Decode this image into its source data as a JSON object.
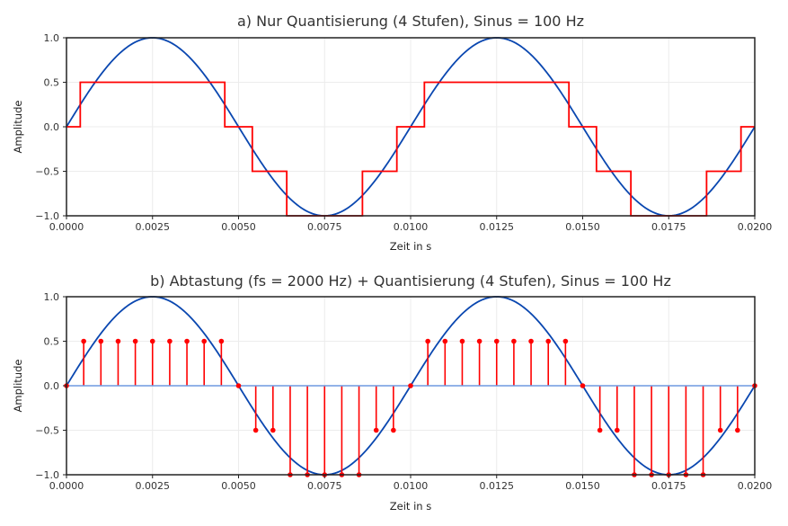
{
  "colors": {
    "sine": "#0a47b0",
    "quant": "#ff0000",
    "baseline": "#6e9ae0",
    "grid": "#ececec",
    "frame": "#222222"
  },
  "chart_data": [
    {
      "type": "line",
      "title": "a) Nur Quantisierung (4 Stufen), Sinus = 100 Hz",
      "xlabel": "Zeit in s",
      "ylabel": "Amplitude",
      "xlim": [
        0,
        0.02
      ],
      "ylim": [
        -1,
        1
      ],
      "grid": true,
      "x_ticks": [
        0,
        0.0025,
        0.005,
        0.0075,
        0.01,
        0.0125,
        0.015,
        0.0175,
        0.02
      ],
      "x_tick_labels": [
        "0.0000",
        "0.0025",
        "0.0050",
        "0.0075",
        "0.0100",
        "0.0125",
        "0.0150",
        "0.0175",
        "0.0200"
      ],
      "y_ticks": [
        -1,
        -0.5,
        0,
        0.5,
        1
      ],
      "y_tick_labels": [
        "−1.0",
        "−0.5",
        "0.0",
        "0.5",
        "1.0"
      ],
      "series": [
        {
          "kind": "sine",
          "frequency_hz": 100,
          "amplitude": 1
        },
        {
          "kind": "step",
          "x": [
            0,
            0.0004,
            0.0046,
            0.0054,
            0.0064,
            0.0086,
            0.0096,
            0.0104,
            0.0146,
            0.0154,
            0.0164,
            0.0186,
            0.0196,
            0.02
          ],
          "values": [
            0,
            0.5,
            0,
            -0.5,
            -1,
            -0.5,
            0,
            0.5,
            0,
            -0.5,
            -1,
            -0.5,
            0,
            0
          ]
        }
      ]
    },
    {
      "type": "stem",
      "title": "b) Abtastung (fs = 2000 Hz) + Quantisierung (4 Stufen), Sinus = 100 Hz",
      "xlabel": "Zeit in s",
      "ylabel": "Amplitude",
      "xlim": [
        0,
        0.02
      ],
      "ylim": [
        -1,
        1
      ],
      "grid": true,
      "sample_rate_hz": 2000,
      "x_ticks": [
        0,
        0.0025,
        0.005,
        0.0075,
        0.01,
        0.0125,
        0.015,
        0.0175,
        0.02
      ],
      "x_tick_labels": [
        "0.0000",
        "0.0025",
        "0.0050",
        "0.0075",
        "0.0100",
        "0.0125",
        "0.0150",
        "0.0175",
        "0.0200"
      ],
      "y_ticks": [
        -1,
        -0.5,
        0,
        0.5,
        1
      ],
      "y_tick_labels": [
        "−1.0",
        "−0.5",
        "0.0",
        "0.5",
        "1.0"
      ],
      "series": [
        {
          "kind": "sine",
          "frequency_hz": 100,
          "amplitude": 1
        },
        {
          "kind": "stem",
          "x": [
            0,
            0.0005,
            0.001,
            0.0015,
            0.002,
            0.0025,
            0.003,
            0.0035,
            0.004,
            0.0045,
            0.005,
            0.0055,
            0.006,
            0.0065,
            0.007,
            0.0075,
            0.008,
            0.0085,
            0.009,
            0.0095,
            0.01,
            0.0105,
            0.011,
            0.0115,
            0.012,
            0.0125,
            0.013,
            0.0135,
            0.014,
            0.0145,
            0.015,
            0.0155,
            0.016,
            0.0165,
            0.017,
            0.0175,
            0.018,
            0.0185,
            0.019,
            0.0195,
            0.02
          ],
          "values": [
            0,
            0.5,
            0.5,
            0.5,
            0.5,
            0.5,
            0.5,
            0.5,
            0.5,
            0.5,
            0,
            -0.5,
            -0.5,
            -1,
            -1,
            -1,
            -1,
            -1,
            -0.5,
            -0.5,
            0,
            0.5,
            0.5,
            0.5,
            0.5,
            0.5,
            0.5,
            0.5,
            0.5,
            0.5,
            0,
            -0.5,
            -0.5,
            -1,
            -1,
            -1,
            -1,
            -1,
            -0.5,
            -0.5,
            0
          ]
        }
      ]
    }
  ]
}
